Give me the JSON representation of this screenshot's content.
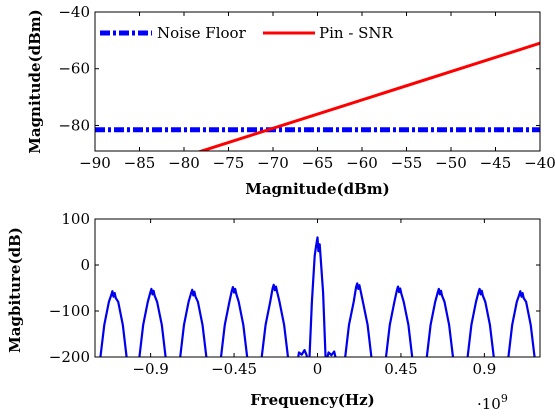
{
  "colors": {
    "noise": "#0000ff",
    "pin": "#ff0000",
    "spectrum": "#0000ee",
    "axis": "#000000"
  },
  "chart_data": [
    {
      "type": "line",
      "title": "",
      "xlabel": "Magnitude(dBm)",
      "ylabel": "Magnitude(dBm)",
      "xlim": [
        -90,
        -40
      ],
      "ylim": [
        -89,
        -40
      ],
      "xticks": [
        -90,
        -85,
        -80,
        -75,
        -70,
        -65,
        -60,
        -55,
        -50,
        -45,
        -40
      ],
      "xtick_labels": [
        "−90",
        "−85",
        "−80",
        "−75",
        "−70",
        "−65",
        "−60",
        "−55",
        "−50",
        "−45",
        "−40"
      ],
      "yticks": [
        -80,
        -60,
        -40
      ],
      "ytick_labels": [
        "−80",
        "−60",
        "−40"
      ],
      "legend_position": "top-left",
      "series": [
        {
          "name": "Noise Floor",
          "style": "dash-dot",
          "x": [
            -90,
            -40
          ],
          "y": [
            -81.5,
            -81.5
          ]
        },
        {
          "name": "Pin - SNR",
          "style": "solid",
          "x": [
            -80,
            -40
          ],
          "y": [
            -91,
            -51
          ]
        }
      ]
    },
    {
      "type": "line",
      "title": "",
      "xlabel": "Frequency(Hz)",
      "ylabel": "Magbiture(dB)",
      "x_multiplier_label": "·10",
      "x_multiplier_exp": "9",
      "xlim": [
        -1.2,
        1.2
      ],
      "ylim": [
        -200,
        100
      ],
      "xticks": [
        -0.9,
        -0.45,
        0,
        0.45,
        0.9
      ],
      "xtick_labels": [
        "−0.9",
        "−0.45",
        "0",
        "0.45",
        "0.9"
      ],
      "yticks": [
        100,
        0,
        -100,
        -200
      ],
      "ytick_labels": [
        "100",
        "0",
        "−100",
        "−200"
      ],
      "lobe_centers": [
        -1.1,
        -0.89,
        -0.67,
        -0.45,
        -0.23,
        0,
        0.22,
        0.44,
        0.66,
        0.88,
        1.1
      ],
      "lobe_peaks": [
        -57,
        -52,
        -54,
        -48,
        -43,
        60,
        -40,
        -47,
        -52,
        -52,
        -57
      ],
      "series": [
        {
          "name": "",
          "style": "solid"
        }
      ]
    }
  ]
}
